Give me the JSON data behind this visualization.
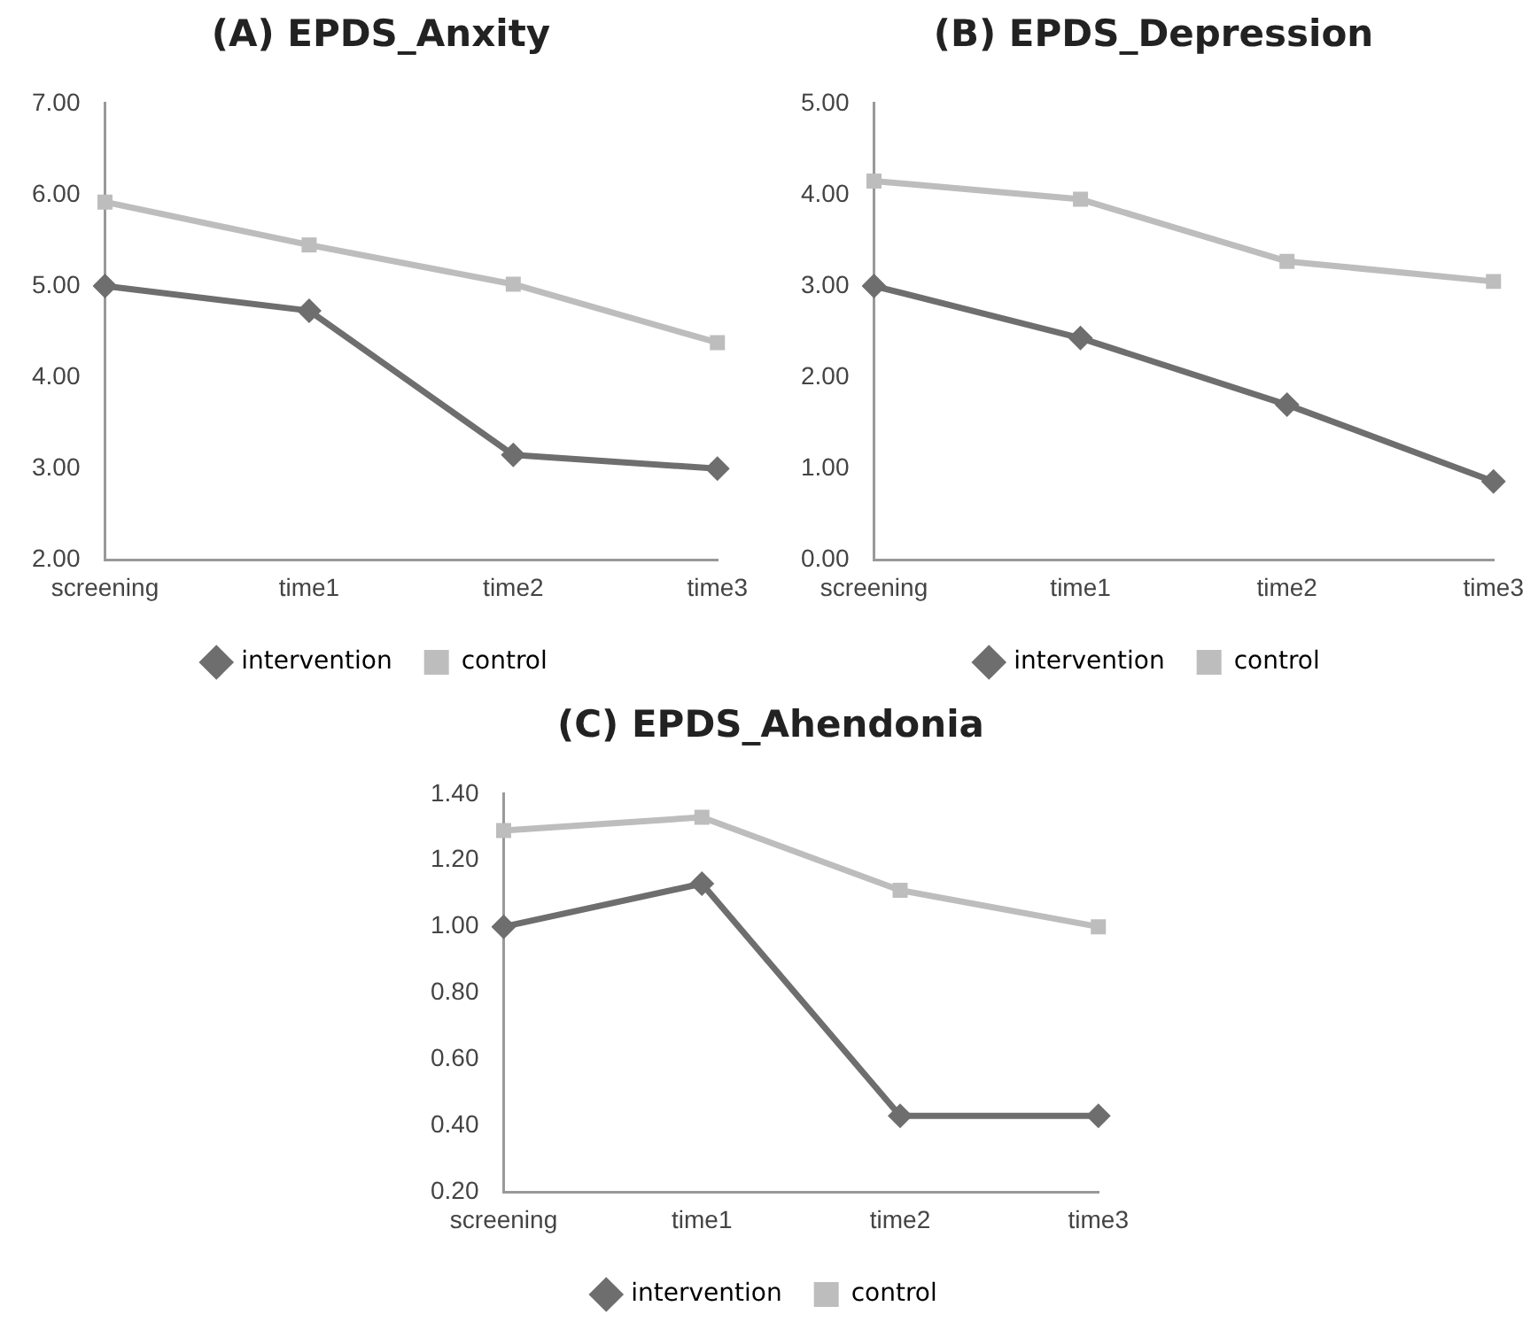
{
  "chart_data": [
    {
      "type": "line",
      "title": "(A) EPDS_Anxity",
      "categories": [
        "screening",
        "time1",
        "time2",
        "time3"
      ],
      "series": [
        {
          "name": "intervention",
          "color": "#6e6e6e",
          "marker": "diamond",
          "values": [
            5.0,
            4.73,
            3.15,
            3.0
          ]
        },
        {
          "name": "control",
          "color": "#bdbdbd",
          "marker": "square",
          "values": [
            5.92,
            5.45,
            5.02,
            4.38
          ]
        }
      ],
      "ylim": [
        2,
        7
      ],
      "yticks": [
        {
          "value": 2,
          "label": "2.00"
        },
        {
          "value": 3,
          "label": "3.00"
        },
        {
          "value": 4,
          "label": "4.00"
        },
        {
          "value": 5,
          "label": "5.00"
        },
        {
          "value": 6,
          "label": "6.00"
        },
        {
          "value": 7,
          "label": "7.00"
        }
      ],
      "grid": false,
      "legend": "bottom"
    },
    {
      "type": "line",
      "title": "(B) EPDS_Depression",
      "categories": [
        "screening",
        "time1",
        "time2",
        "time3"
      ],
      "series": [
        {
          "name": "intervention",
          "color": "#6e6e6e",
          "marker": "diamond",
          "values": [
            3.0,
            2.43,
            1.7,
            0.86
          ]
        },
        {
          "name": "control",
          "color": "#bdbdbd",
          "marker": "square",
          "values": [
            4.15,
            3.95,
            3.27,
            3.05
          ]
        }
      ],
      "ylim": [
        0,
        5
      ],
      "yticks": [
        {
          "value": 0,
          "label": "0.00"
        },
        {
          "value": 1,
          "label": "1.00"
        },
        {
          "value": 2,
          "label": "2.00"
        },
        {
          "value": 3,
          "label": "3.00"
        },
        {
          "value": 4,
          "label": "4.00"
        },
        {
          "value": 5,
          "label": "5.00"
        }
      ],
      "grid": false,
      "legend": "bottom"
    },
    {
      "type": "line",
      "title": "(C) EPDS_Ahendonia",
      "categories": [
        "screening",
        "time1",
        "time2",
        "time3"
      ],
      "series": [
        {
          "name": "intervention",
          "color": "#6e6e6e",
          "marker": "diamond",
          "values": [
            1.0,
            1.13,
            0.43,
            0.43
          ]
        },
        {
          "name": "control",
          "color": "#bdbdbd",
          "marker": "square",
          "values": [
            1.29,
            1.33,
            1.11,
            1.0
          ]
        }
      ],
      "ylim": [
        0.2,
        1.4
      ],
      "yticks": [
        {
          "value": 0.2,
          "label": "0.20"
        },
        {
          "value": 0.4,
          "label": "0.40"
        },
        {
          "value": 0.6,
          "label": "0.60"
        },
        {
          "value": 0.8,
          "label": "0.80"
        },
        {
          "value": 1.0,
          "label": "1.00"
        },
        {
          "value": 1.2,
          "label": "1.20"
        },
        {
          "value": 1.4,
          "label": "1.40"
        }
      ],
      "grid": false,
      "legend": "bottom"
    }
  ]
}
